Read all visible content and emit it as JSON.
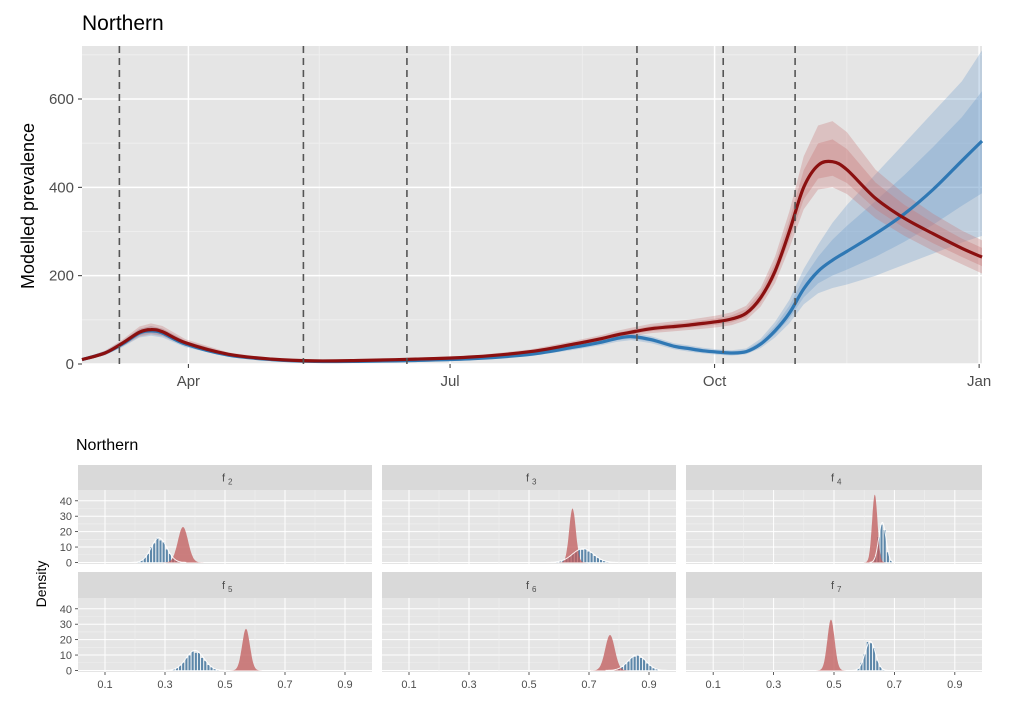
{
  "colors": {
    "panel_bg": "#e5e5e5",
    "grid_major": "#ffffff",
    "grid_minor": "#f0f0f0",
    "strip_bg": "#d9d9d9",
    "blue": "#2f78b4",
    "red": "#8b1010",
    "red_ribbon": "#c87676",
    "blue_ribbon": "#6f9fcc",
    "red_density": "#c05a5a",
    "blue_density": "#3b6f9a",
    "vline": "#555555"
  },
  "chart_data": [
    {
      "type": "line",
      "title": "Northern",
      "xlabel": "",
      "ylabel": "Modelled prevalence",
      "x_ticks": [
        "Apr",
        "Jul",
        "Oct",
        "Jan"
      ],
      "x_tick_days": [
        31,
        122,
        214,
        306
      ],
      "xlim_days": [
        -6,
        307
      ],
      "y_ticks": [
        0,
        200,
        400,
        600
      ],
      "ylim": [
        0,
        720
      ],
      "grid": true,
      "vlines_days": [
        7,
        71,
        107,
        187,
        217,
        242
      ],
      "series": [
        {
          "color": "blue",
          "x_days": [
            -6,
            2,
            8,
            14,
            18,
            22,
            30,
            45,
            60,
            75,
            90,
            110,
            130,
            150,
            165,
            175,
            180,
            185,
            192,
            200,
            205,
            210,
            215,
            220,
            225,
            230,
            235,
            240,
            245,
            250,
            255,
            260,
            270,
            280,
            290,
            300,
            307
          ],
          "y": [
            10,
            25,
            45,
            70,
            75,
            70,
            45,
            20,
            10,
            6,
            6,
            8,
            12,
            22,
            38,
            50,
            58,
            62,
            55,
            40,
            35,
            30,
            27,
            25,
            28,
            45,
            75,
            115,
            170,
            210,
            235,
            255,
            295,
            340,
            395,
            460,
            505
          ],
          "lower": [
            8,
            20,
            38,
            60,
            64,
            60,
            38,
            16,
            8,
            4,
            5,
            6,
            10,
            18,
            32,
            43,
            50,
            54,
            47,
            33,
            28,
            24,
            21,
            19,
            22,
            36,
            60,
            92,
            135,
            160,
            172,
            180,
            200,
            225,
            250,
            275,
            290
          ],
          "upper": [
            12,
            30,
            52,
            80,
            86,
            80,
            52,
            24,
            12,
            8,
            8,
            10,
            15,
            26,
            44,
            58,
            66,
            71,
            63,
            47,
            42,
            37,
            33,
            31,
            35,
            57,
            95,
            145,
            215,
            270,
            320,
            360,
            430,
            500,
            570,
            640,
            710
          ]
        },
        {
          "color": "red",
          "x_days": [
            -6,
            2,
            8,
            14,
            18,
            22,
            30,
            45,
            60,
            75,
            90,
            110,
            130,
            150,
            165,
            175,
            180,
            185,
            192,
            200,
            205,
            210,
            215,
            220,
            225,
            230,
            235,
            240,
            245,
            250,
            255,
            260,
            270,
            280,
            290,
            300,
            307
          ],
          "y": [
            10,
            25,
            47,
            72,
            78,
            73,
            48,
            22,
            11,
            7,
            8,
            11,
            16,
            28,
            45,
            58,
            66,
            72,
            80,
            85,
            88,
            92,
            96,
            102,
            115,
            150,
            210,
            300,
            400,
            450,
            458,
            440,
            375,
            330,
            295,
            262,
            242
          ],
          "lower": [
            8,
            20,
            40,
            62,
            67,
            63,
            41,
            18,
            9,
            5,
            6,
            9,
            13,
            23,
            39,
            51,
            58,
            63,
            70,
            74,
            77,
            80,
            83,
            88,
            99,
            130,
            183,
            262,
            350,
            395,
            400,
            385,
            330,
            290,
            256,
            226,
            205
          ],
          "upper": [
            12,
            30,
            55,
            85,
            92,
            86,
            56,
            26,
            13,
            9,
            10,
            14,
            19,
            33,
            52,
            66,
            75,
            82,
            91,
            97,
            100,
            105,
            110,
            117,
            132,
            172,
            243,
            345,
            470,
            540,
            550,
            525,
            440,
            385,
            340,
            302,
            280
          ]
        }
      ]
    },
    {
      "type": "area",
      "title": "Northern",
      "ylabel": "Density",
      "x_ticks": [
        "0.1",
        "0.3",
        "0.5",
        "0.7",
        "0.9"
      ],
      "x_tick_values": [
        0.1,
        0.3,
        0.5,
        0.7,
        0.9
      ],
      "xlim": [
        0.01,
        0.99
      ],
      "y_ticks": [
        "0",
        "10",
        "20",
        "30",
        "40"
      ],
      "y_tick_values": [
        0,
        10,
        20,
        30,
        40
      ],
      "ylim": [
        -1,
        47
      ],
      "grid": true,
      "panels": [
        {
          "strip": "f",
          "sub": "2",
          "blue_histogram": {
            "mean": 0.28,
            "sd": 0.026,
            "peak": 16
          },
          "red_density": {
            "mean": 0.36,
            "sd": 0.017,
            "peak": 23
          }
        },
        {
          "strip": "f",
          "sub": "3",
          "blue_histogram": {
            "mean": 0.68,
            "sd": 0.035,
            "peak": 9
          },
          "red_density": {
            "mean": 0.645,
            "sd": 0.011,
            "peak": 35
          }
        },
        {
          "strip": "f",
          "sub": "4",
          "blue_histogram": {
            "mean": 0.66,
            "sd": 0.012,
            "peak": 26
          },
          "red_density": {
            "mean": 0.635,
            "sd": 0.009,
            "peak": 44
          }
        },
        {
          "strip": "f",
          "sub": "5",
          "blue_histogram": {
            "mean": 0.4,
            "sd": 0.03,
            "peak": 13
          },
          "red_density": {
            "mean": 0.57,
            "sd": 0.013,
            "peak": 27
          }
        },
        {
          "strip": "f",
          "sub": "6",
          "blue_histogram": {
            "mean": 0.86,
            "sd": 0.03,
            "peak": 10
          },
          "red_density": {
            "mean": 0.77,
            "sd": 0.016,
            "peak": 23
          }
        },
        {
          "strip": "f",
          "sub": "7",
          "blue_histogram": {
            "mean": 0.62,
            "sd": 0.017,
            "peak": 19
          },
          "red_density": {
            "mean": 0.49,
            "sd": 0.012,
            "peak": 33
          }
        }
      ]
    }
  ]
}
